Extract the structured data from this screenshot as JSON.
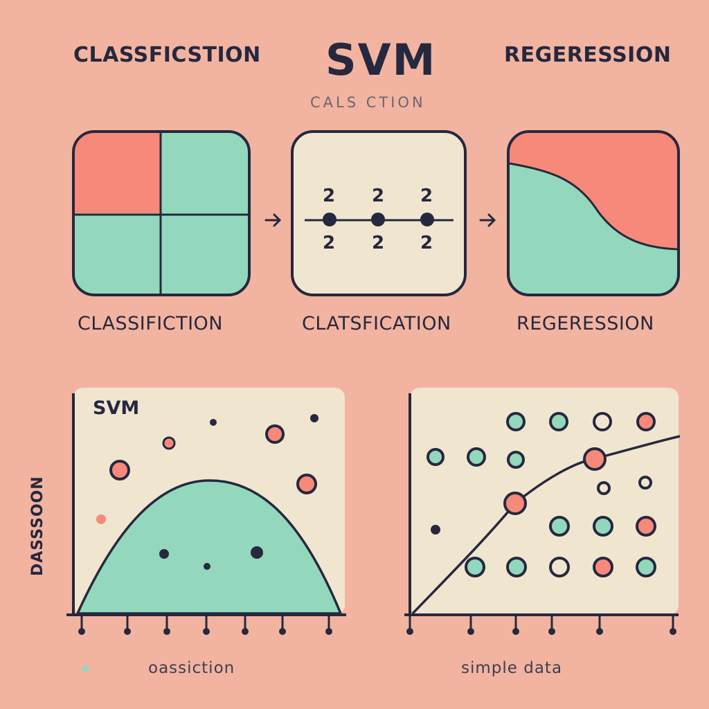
{
  "header": {
    "left_title": "CLASSFICSTION",
    "center_title": "SVM",
    "right_title": "REGERESSION",
    "subtitle": "CALS   CTION"
  },
  "panels": {
    "left_caption": "CLASSIFICTION",
    "middle_caption": "CLATSFICATION",
    "right_caption": "REGERESSION",
    "middle_points": {
      "top_labels": [
        "2",
        "2",
        "2"
      ],
      "bottom_labels": [
        "2",
        "2",
        "2"
      ]
    }
  },
  "bottom_left_chart": {
    "title": "SVM",
    "ylabel": "DASSSOON",
    "footer": "oassiction"
  },
  "bottom_right_chart": {
    "footer": "simple data"
  },
  "colors": {
    "background": "#f2b4a0",
    "coral": "#f7897a",
    "mint": "#93d8bc",
    "cream": "#f0e6d0",
    "ink": "#25283f"
  }
}
